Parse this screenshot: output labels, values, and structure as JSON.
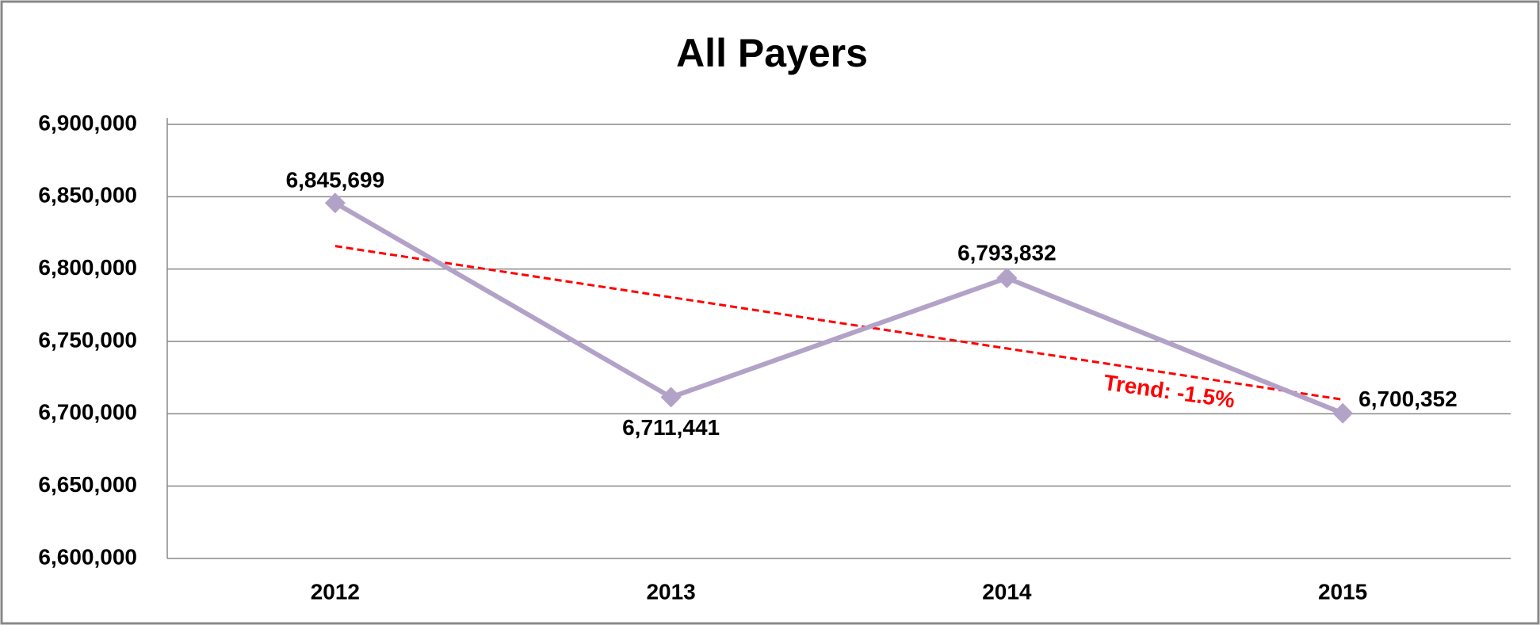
{
  "chart_data": {
    "type": "line",
    "title": "All Payers",
    "categories": [
      "2012",
      "2013",
      "2014",
      "2015"
    ],
    "series": [
      {
        "name": "All Payers",
        "color": "#b3a2c7",
        "values": [
          6845699,
          6711441,
          6793832,
          6700352
        ],
        "value_labels": [
          "6,845,699",
          "6,711,441",
          "6,793,832",
          "6,700,352"
        ]
      }
    ],
    "ylim": [
      6600000,
      6900000
    ],
    "yticks": [
      {
        "value": 6600000,
        "label": "6,600,000"
      },
      {
        "value": 6650000,
        "label": "6,650,000"
      },
      {
        "value": 6700000,
        "label": "6,700,000"
      },
      {
        "value": 6750000,
        "label": "6,750,000"
      },
      {
        "value": 6800000,
        "label": "6,800,000"
      },
      {
        "value": 6850000,
        "label": "6,850,000"
      },
      {
        "value": 6900000,
        "label": "6,900,000"
      }
    ],
    "grid": true,
    "trendline": {
      "type": "linear",
      "color": "#ff0000"
    },
    "annotation": "Trend: -1.5%"
  }
}
